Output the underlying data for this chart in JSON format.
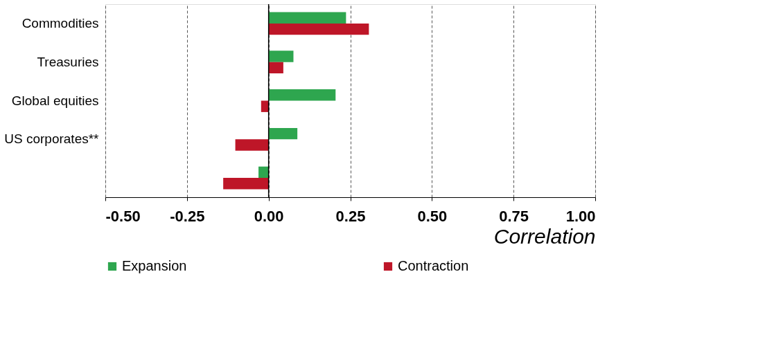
{
  "chart_data": {
    "type": "bar",
    "orientation": "horizontal",
    "categories": [
      "Commodities",
      "Treasuries",
      "Global equities",
      "US corporates**",
      null
    ],
    "series": [
      {
        "name": "Expansion",
        "color": "#2ea64f",
        "values": [
          0.237,
          0.076,
          0.205,
          0.088,
          -0.031
        ]
      },
      {
        "name": "Contraction",
        "color": "#be1628",
        "values": [
          0.307,
          0.045,
          -0.023,
          -0.102,
          -0.139
        ]
      }
    ],
    "xlim": [
      -0.5,
      1.0
    ],
    "xticks": [
      {
        "value": -0.5,
        "label": "-0.50"
      },
      {
        "value": -0.25,
        "label": "-0.25"
      },
      {
        "value": 0,
        "label": "0.00"
      },
      {
        "value": 0.25,
        "label": "0.25"
      },
      {
        "value": 0.5,
        "label": "0.50"
      },
      {
        "value": 0.75,
        "label": "0.75"
      },
      {
        "value": 1.0,
        "label": "1.00"
      }
    ],
    "xlabel": "Correlation",
    "grid": "x",
    "legend": "bottom",
    "ref_lines": [
      {
        "axis": "x",
        "value": 0,
        "color": "#000000",
        "line_style": "solid"
      }
    ]
  }
}
